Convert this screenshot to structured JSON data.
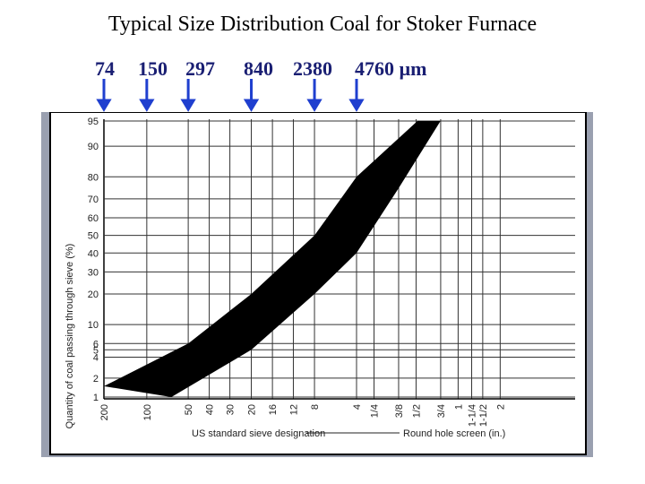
{
  "chart_data": {
    "type": "area",
    "title": "Typical Size Distribution Coal for Stoker Furnace",
    "micron_labels": [
      "74",
      "150",
      "297",
      "840",
      "2380",
      "4760 µm"
    ],
    "ylabel": "Quantity of coal passing through sieve (%)",
    "y_scale": "probability",
    "y_ticks": [
      "95",
      "90",
      "80",
      "70",
      "60",
      "50",
      "40",
      "30",
      "20",
      "10",
      "6",
      "5",
      "4",
      "2",
      "1"
    ],
    "x_scale": "log",
    "x_ticks_sieve": [
      "200",
      "100",
      "50",
      "40",
      "30",
      "20",
      "16",
      "12",
      "8",
      "4"
    ],
    "x_ticks_round_hole": [
      "1/4",
      "3/8",
      "1/2",
      "3/4",
      "1",
      "1-1/4",
      "1-1/2",
      "2"
    ],
    "xlabel_sieve": "US standard sieve designation",
    "xlabel_round_hole": "Round hole screen (in.)",
    "grid": true,
    "series": [
      {
        "bound": "upper",
        "x_um": [
          74,
          297,
          840,
          2380,
          4760,
          13000
        ],
        "y": [
          1.5,
          6,
          20,
          50,
          80,
          95
        ]
      },
      {
        "bound": "lower",
        "x_um": [
          225,
          840,
          2380,
          4760,
          9500,
          19000
        ],
        "y": [
          1,
          5,
          20,
          40,
          75,
          95
        ]
      }
    ]
  }
}
